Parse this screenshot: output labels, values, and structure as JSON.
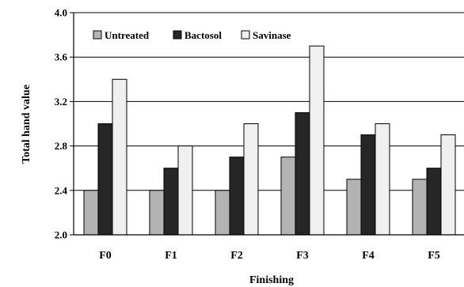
{
  "chart_data": {
    "type": "bar",
    "categories": [
      "F0",
      "F1",
      "F2",
      "F3",
      "F4",
      "F5"
    ],
    "series": [
      {
        "name": "Untreated",
        "values": [
          2.4,
          2.4,
          2.4,
          2.7,
          2.5,
          2.5
        ],
        "color": "#b3b3b3"
      },
      {
        "name": "Bactosol",
        "values": [
          3.0,
          2.6,
          2.7,
          3.1,
          2.9,
          2.6
        ],
        "color": "#262626"
      },
      {
        "name": "Savinase",
        "values": [
          3.4,
          2.8,
          3.0,
          3.7,
          3.0,
          2.9
        ],
        "color": "#f0f0f0"
      }
    ],
    "xlabel": "Finishing",
    "ylabel": "Total hand value",
    "ylim": [
      2.0,
      4.0
    ],
    "yticks": [
      "2.0",
      "2.4",
      "2.8",
      "3.2",
      "3.6",
      "4.0"
    ],
    "grid": true,
    "legend_position": "top-left"
  }
}
